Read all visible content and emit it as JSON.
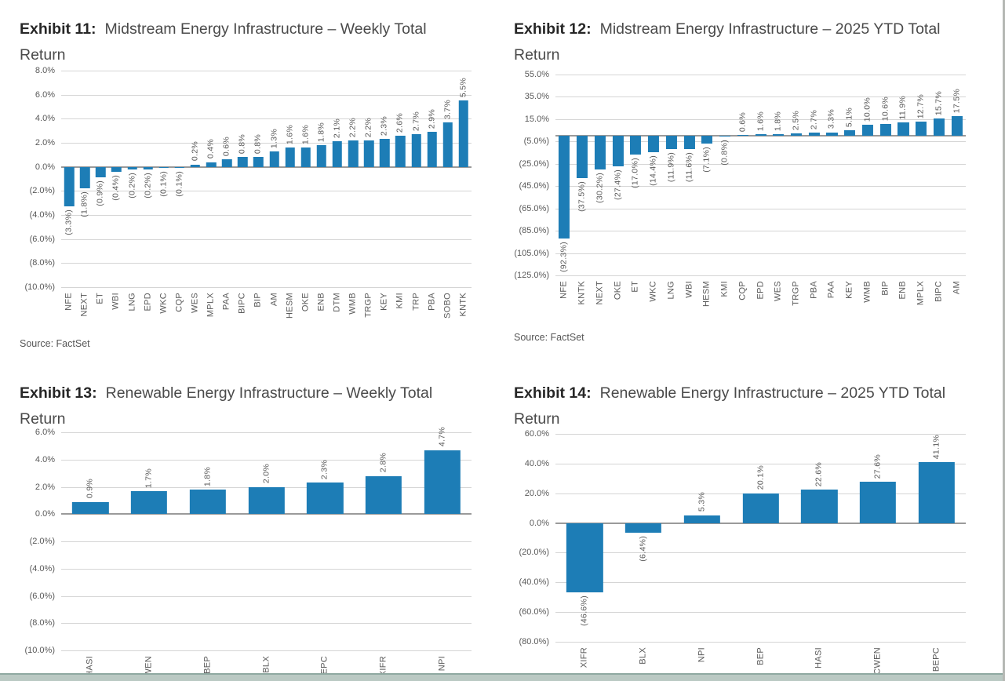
{
  "colors": {
    "bar_blue": "#1d7db6",
    "gridline": "#d5d5d5",
    "zero_axis": "#9a9a9a",
    "footer_strip": "#bac9c3",
    "footer_strip_edge": "#8fa9a1"
  },
  "chart_data": [
    {
      "type": "bar",
      "exhibit": "Exhibit 11:",
      "title": "Midstream Energy Infrastructure – Weekly Total Return",
      "source": "Source: FactSet",
      "bar_color": "#1d7db6",
      "grid": true,
      "legend": "none",
      "categories": [
        "NFE",
        "NEXT",
        "ET",
        "WBI",
        "LNG",
        "EPD",
        "WKC",
        "CQP",
        "WES",
        "MPLX",
        "PAA",
        "BIPC",
        "BIP",
        "AM",
        "HESM",
        "OKE",
        "ENB",
        "DTM",
        "WMB",
        "TRGP",
        "KEY",
        "KMI",
        "TRP",
        "PBA",
        "SOBO",
        "KNTK"
      ],
      "values": [
        -3.3,
        -1.8,
        -0.9,
        -0.4,
        -0.2,
        -0.2,
        -0.1,
        -0.1,
        0.2,
        0.4,
        0.6,
        0.8,
        0.8,
        1.3,
        1.6,
        1.6,
        1.8,
        2.1,
        2.2,
        2.2,
        2.3,
        2.6,
        2.7,
        2.9,
        3.7,
        5.5
      ],
      "bar_labels": [
        "(3.3%)",
        "(1.8%)",
        "(0.9%)",
        "(0.4%)",
        "(0.2%)",
        "(0.2%)",
        "(0.1%)",
        "(0.1%)",
        "0.2%",
        "0.4%",
        "0.6%",
        "0.8%",
        "0.8%",
        "1.3%",
        "1.6%",
        "1.6%",
        "1.8%",
        "2.1%",
        "2.2%",
        "2.2%",
        "2.3%",
        "2.6%",
        "2.7%",
        "2.9%",
        "3.7%",
        "5.5%"
      ],
      "ylim": [
        -10,
        8
      ],
      "yticks": [
        {
          "label": "8.0%",
          "value": 8
        },
        {
          "label": "6.0%",
          "value": 6
        },
        {
          "label": "4.0%",
          "value": 4
        },
        {
          "label": "2.0%",
          "value": 2
        },
        {
          "label": "0.0%",
          "value": 0
        },
        {
          "label": "(2.0%)",
          "value": -2
        },
        {
          "label": "(4.0%)",
          "value": -4
        },
        {
          "label": "(6.0%)",
          "value": -6
        },
        {
          "label": "(8.0%)",
          "value": -8
        },
        {
          "label": "(10.0%)",
          "value": -10
        }
      ]
    },
    {
      "type": "bar",
      "exhibit": "Exhibit 12:",
      "title": "Midstream Energy Infrastructure – 2025 YTD Total Return",
      "source": "Source: FactSet",
      "bar_color": "#1d7db6",
      "grid": true,
      "legend": "none",
      "categories": [
        "NFE",
        "KNTK",
        "NEXT",
        "OKE",
        "ET",
        "WKC",
        "LNG",
        "WBI",
        "HESM",
        "KMI",
        "CQP",
        "EPD",
        "WES",
        "TRGP",
        "PBA",
        "PAA",
        "KEY",
        "WMB",
        "BIP",
        "ENB",
        "MPLX",
        "BIPC",
        "AM"
      ],
      "values": [
        -92.3,
        -37.5,
        -30.2,
        -27.4,
        -17.0,
        -14.4,
        -11.9,
        -11.6,
        -7.1,
        -0.8,
        0.6,
        1.6,
        1.8,
        2.5,
        2.7,
        3.3,
        5.1,
        10.0,
        10.6,
        11.9,
        12.7,
        15.7,
        17.5
      ],
      "bar_labels": [
        "(92.3%)",
        "(37.5%)",
        "(30.2%)",
        "(27.4%)",
        "(17.0%)",
        "(14.4%)",
        "(11.9%)",
        "(11.6%)",
        "(7.1%)",
        "(0.8%)",
        "0.6%",
        "1.6%",
        "1.8%",
        "2.5%",
        "2.7%",
        "3.3%",
        "5.1%",
        "10.0%",
        "10.6%",
        "11.9%",
        "12.7%",
        "15.7%",
        "17.5%"
      ],
      "ylim": [
        -125,
        55
      ],
      "yticks": [
        {
          "label": "55.0%",
          "value": 55
        },
        {
          "label": "35.0%",
          "value": 35
        },
        {
          "label": "15.0%",
          "value": 15
        },
        {
          "label": "(5.0%)",
          "value": -5
        },
        {
          "label": "(25.0%)",
          "value": -25
        },
        {
          "label": "(45.0%)",
          "value": -45
        },
        {
          "label": "(65.0%)",
          "value": -65
        },
        {
          "label": "(85.0%)",
          "value": -85
        },
        {
          "label": "(105.0%)",
          "value": -105
        },
        {
          "label": "(125.0%)",
          "value": -125
        }
      ]
    },
    {
      "type": "bar",
      "exhibit": "Exhibit 13:",
      "title": "Renewable Energy Infrastructure – Weekly Total Return",
      "bar_color": "#1d7db6",
      "grid": true,
      "legend": "none",
      "categories": [
        "HASI",
        "CWEN",
        "BEP",
        "BLX",
        "BEPC",
        "XIFR",
        "NPI"
      ],
      "values": [
        0.9,
        1.7,
        1.8,
        2.0,
        2.3,
        2.8,
        4.7
      ],
      "bar_labels": [
        "0.9%",
        "1.7%",
        "1.8%",
        "2.0%",
        "2.3%",
        "2.8%",
        "4.7%"
      ],
      "ylim": [
        -10,
        6
      ],
      "yticks": [
        {
          "label": "6.0%",
          "value": 6
        },
        {
          "label": "4.0%",
          "value": 4
        },
        {
          "label": "2.0%",
          "value": 2
        },
        {
          "label": "0.0%",
          "value": 0
        },
        {
          "label": "(2.0%)",
          "value": -2
        },
        {
          "label": "(4.0%)",
          "value": -4
        },
        {
          "label": "(6.0%)",
          "value": -6
        },
        {
          "label": "(8.0%)",
          "value": -8
        },
        {
          "label": "(10.0%)",
          "value": -10
        }
      ]
    },
    {
      "type": "bar",
      "exhibit": "Exhibit 14:",
      "title": "Renewable Energy Infrastructure – 2025 YTD Total Return",
      "bar_color": "#1d7db6",
      "grid": true,
      "legend": "none",
      "categories": [
        "XIFR",
        "BLX",
        "NPI",
        "BEP",
        "HASI",
        "CWEN",
        "BEPC"
      ],
      "values": [
        -46.6,
        -6.4,
        5.3,
        20.1,
        22.6,
        27.6,
        41.1
      ],
      "bar_labels": [
        "(46.6%)",
        "(6.4%)",
        "5.3%",
        "20.1%",
        "22.6%",
        "27.6%",
        "41.1%"
      ],
      "ylim": [
        -80,
        60
      ],
      "yticks": [
        {
          "label": "60.0%",
          "value": 60
        },
        {
          "label": "40.0%",
          "value": 40
        },
        {
          "label": "20.0%",
          "value": 20
        },
        {
          "label": "0.0%",
          "value": 0
        },
        {
          "label": "(20.0%)",
          "value": -20
        },
        {
          "label": "(40.0%)",
          "value": -40
        },
        {
          "label": "(60.0%)",
          "value": -60
        },
        {
          "label": "(80.0%)",
          "value": -80
        }
      ]
    }
  ]
}
